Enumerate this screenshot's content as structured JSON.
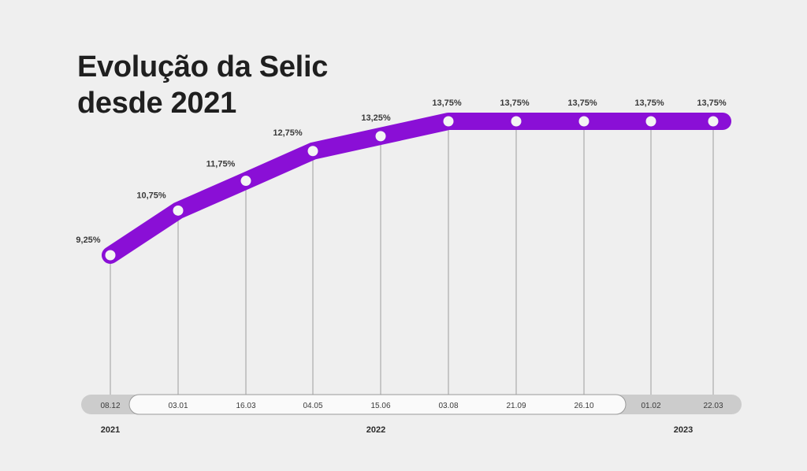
{
  "title_lines": [
    "Evolução da Selic",
    "desde 2021"
  ],
  "colors": {
    "background": "#efefef",
    "line": "#8a0fd6",
    "point_fill": "#f4f4f4",
    "guide": "#9c9c9c",
    "timeline_gray": "#cccccc",
    "timeline_white": "#fafafa"
  },
  "chart_data": {
    "type": "line",
    "title": "Evolução da Selic desde 2021",
    "categories": [
      "08.12",
      "03.01",
      "16.03",
      "04.05",
      "15.06",
      "03.08",
      "21.09",
      "26.10",
      "01.02",
      "22.03"
    ],
    "values": [
      9.25,
      10.75,
      11.75,
      12.75,
      13.25,
      13.75,
      13.75,
      13.75,
      13.75,
      13.75
    ],
    "value_labels": [
      "9,25%",
      "10,75%",
      "11,75%",
      "12,75%",
      "13,25%",
      "13,75%",
      "13,75%",
      "13,75%",
      "13,75%",
      "13,75%"
    ],
    "years": [
      {
        "label": "2021",
        "from": 0,
        "to": 0
      },
      {
        "label": "2022",
        "from": 1,
        "to": 7
      },
      {
        "label": "2023",
        "from": 8,
        "to": 9
      }
    ],
    "grid": false,
    "legend": "none"
  }
}
